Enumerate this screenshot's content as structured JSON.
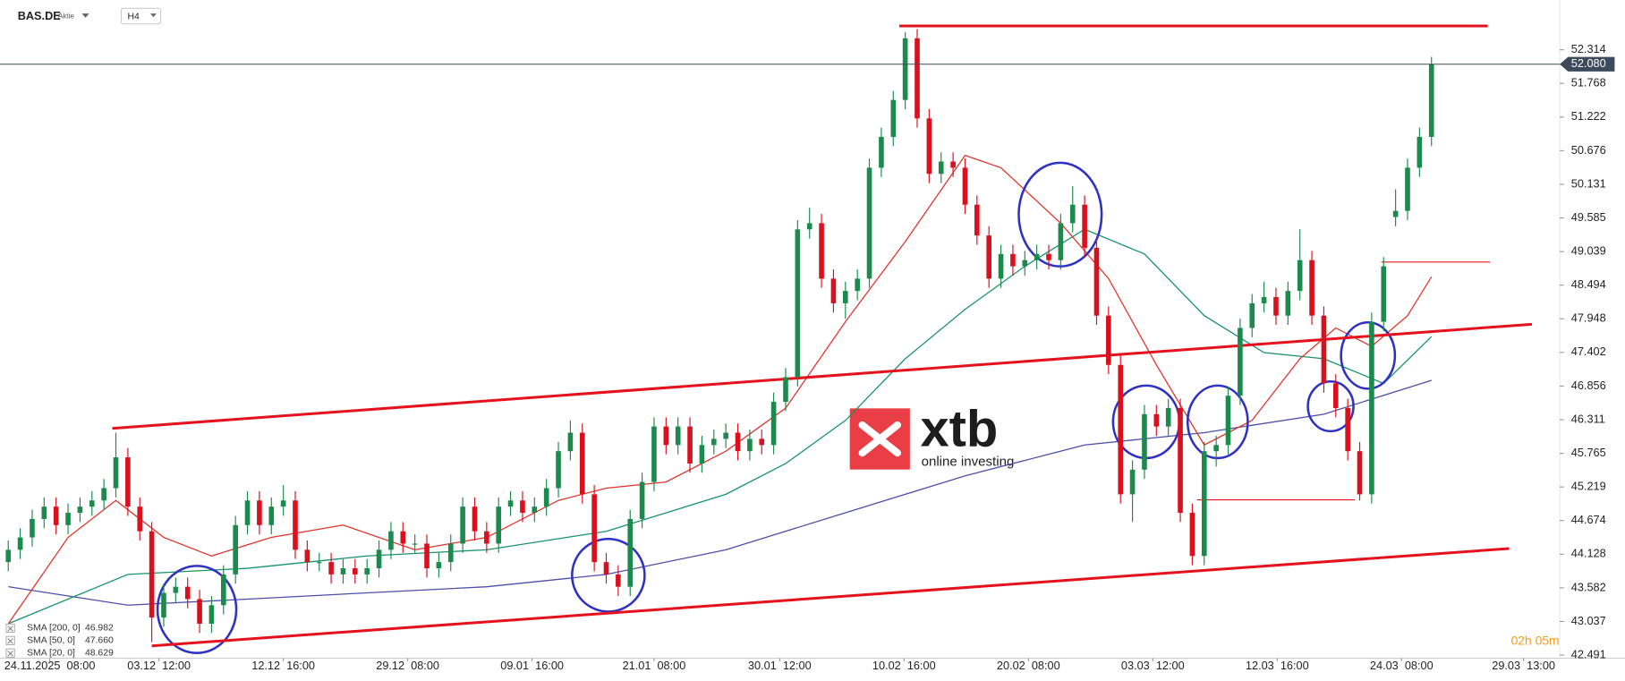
{
  "header": {
    "symbol": "BAS.DE",
    "kind": "Aktie",
    "timeframe": "H4"
  },
  "timer": "02h 05m",
  "logo": {
    "brand": "xtb",
    "tagline": "online investing"
  },
  "chart_data": {
    "type": "candlestick",
    "up_color": "#1b8a4c",
    "down_color": "#d9101e",
    "xlim": [
      -0.69,
      129.29
    ],
    "ylim": [
      42.441,
      53.121
    ],
    "xticks": [
      {
        "value": 3.47,
        "label": "24.11.2025  08:00"
      },
      {
        "value": 12.6,
        "label": "03.12  12:00"
      },
      {
        "value": 23.0,
        "label": "12.12  16:00"
      },
      {
        "value": 33.4,
        "label": "29.12  08:00"
      },
      {
        "value": 43.8,
        "label": "09.01  16:00"
      },
      {
        "value": 54.0,
        "label": "21.01  08:00"
      },
      {
        "value": 64.5,
        "label": "30.01  12:00"
      },
      {
        "value": 74.9,
        "label": "10.02  16:00"
      },
      {
        "value": 85.3,
        "label": "20.02  08:00"
      },
      {
        "value": 95.7,
        "label": "03.03  12:00"
      },
      {
        "value": 106.1,
        "label": "12.03  16:00"
      },
      {
        "value": 116.5,
        "label": "24.03  08:00"
      },
      {
        "value": 126.7,
        "label": "29.03  13:00"
      }
    ],
    "yticks": [
      52.314,
      51.768,
      51.222,
      50.676,
      50.131,
      49.585,
      49.039,
      48.494,
      47.948,
      47.402,
      46.856,
      46.311,
      45.765,
      45.219,
      44.674,
      44.128,
      43.582,
      43.037,
      42.491
    ],
    "last_price": {
      "value": 52.08,
      "label": "52.080"
    },
    "open": [
      44.0,
      44.2,
      44.4,
      44.7,
      44.9,
      44.6,
      44.8,
      44.9,
      45.0,
      45.2,
      45.7,
      44.9,
      44.5,
      43.1,
      43.5,
      43.6,
      43.4,
      43.0,
      43.3,
      43.8,
      44.6,
      45.0,
      44.6,
      44.9,
      45.0,
      44.2,
      44.0,
      44.0,
      43.8,
      43.9,
      43.8,
      43.9,
      44.2,
      44.5,
      44.3,
      44.3,
      43.9,
      44.0,
      44.3,
      44.9,
      44.5,
      44.3,
      44.9,
      45.0,
      44.8,
      44.9,
      45.2,
      45.8,
      46.1,
      45.1,
      44.0,
      43.8,
      43.6,
      44.7,
      45.3,
      46.2,
      45.9,
      46.2,
      45.6,
      45.9,
      46.0,
      46.1,
      45.8,
      46.0,
      45.9,
      46.6,
      47.0,
      49.4,
      49.5,
      48.6,
      48.2,
      48.4,
      48.6,
      50.4,
      50.9,
      51.5,
      52.5,
      51.2,
      50.3,
      50.5,
      50.4,
      49.8,
      49.3,
      48.6,
      49.0,
      48.8,
      48.9,
      49.0,
      48.9,
      49.5,
      49.8,
      49.1,
      48.0,
      47.2,
      45.1,
      45.5,
      46.4,
      46.2,
      46.5,
      44.8,
      44.1,
      45.8,
      45.9,
      46.7,
      47.8,
      48.2,
      48.3,
      48.0,
      48.4,
      48.9,
      48.0,
      46.9,
      46.5,
      45.8,
      45.1,
      47.9,
      49.6,
      49.7,
      50.4,
      50.9
    ],
    "high": [
      44.35,
      44.55,
      44.85,
      45.05,
      45.05,
      44.95,
      45.05,
      45.15,
      45.35,
      46.1,
      45.85,
      45.05,
      44.65,
      43.65,
      43.75,
      43.75,
      43.55,
      43.45,
      43.95,
      44.75,
      45.15,
      45.15,
      45.05,
      45.25,
      45.15,
      44.35,
      44.15,
      44.15,
      44.05,
      44.05,
      44.05,
      44.35,
      44.65,
      44.65,
      44.45,
      44.45,
      44.15,
      44.45,
      45.05,
      45.05,
      44.65,
      45.05,
      45.15,
      45.15,
      45.05,
      45.35,
      45.95,
      46.3,
      46.25,
      45.25,
      44.15,
      43.95,
      44.85,
      45.45,
      46.35,
      46.35,
      46.35,
      46.35,
      46.05,
      46.15,
      46.25,
      46.25,
      46.15,
      46.15,
      46.75,
      47.15,
      49.55,
      49.75,
      49.65,
      48.75,
      48.55,
      48.75,
      50.55,
      51.05,
      51.65,
      52.6,
      52.65,
      51.35,
      50.65,
      50.65,
      50.55,
      49.95,
      49.45,
      49.15,
      49.15,
      49.05,
      49.15,
      49.15,
      49.65,
      50.1,
      49.95,
      49.25,
      48.15,
      47.35,
      45.65,
      46.55,
      46.55,
      46.65,
      46.65,
      44.95,
      45.95,
      46.05,
      46.85,
      47.95,
      48.35,
      48.55,
      48.45,
      48.55,
      49.4,
      49.05,
      48.15,
      47.05,
      46.65,
      45.95,
      48.05,
      48.95,
      50.05,
      50.55,
      51.05,
      52.2
    ],
    "low": [
      43.85,
      44.05,
      44.25,
      44.55,
      44.45,
      44.45,
      44.65,
      44.75,
      44.85,
      45.05,
      44.75,
      44.35,
      42.7,
      42.95,
      43.35,
      43.25,
      42.85,
      42.85,
      43.15,
      43.65,
      44.45,
      44.45,
      44.45,
      44.75,
      44.05,
      43.85,
      43.85,
      43.65,
      43.65,
      43.65,
      43.65,
      43.75,
      44.05,
      44.15,
      44.15,
      43.75,
      43.75,
      43.85,
      44.15,
      44.35,
      44.15,
      44.15,
      44.75,
      44.65,
      44.65,
      44.75,
      45.05,
      45.65,
      44.95,
      43.85,
      43.65,
      43.45,
      43.45,
      44.55,
      45.15,
      45.75,
      45.75,
      45.45,
      45.45,
      45.75,
      45.85,
      45.65,
      45.65,
      45.75,
      45.75,
      46.45,
      46.85,
      49.25,
      48.45,
      48.05,
      47.95,
      48.25,
      48.45,
      50.25,
      50.75,
      51.35,
      51.05,
      50.15,
      50.15,
      50.25,
      49.65,
      49.15,
      48.45,
      48.45,
      48.65,
      48.65,
      48.75,
      48.75,
      48.75,
      49.35,
      48.95,
      47.85,
      47.05,
      44.95,
      44.65,
      45.35,
      46.05,
      46.05,
      44.65,
      43.95,
      43.95,
      45.55,
      45.75,
      46.55,
      47.65,
      48.05,
      47.85,
      47.85,
      48.25,
      47.85,
      46.75,
      46.35,
      45.65,
      45.0,
      44.95,
      47.75,
      49.45,
      49.55,
      50.25,
      50.75
    ],
    "close": [
      44.2,
      44.4,
      44.7,
      44.9,
      44.6,
      44.8,
      44.9,
      45.0,
      45.2,
      45.7,
      44.9,
      44.5,
      43.1,
      43.5,
      43.6,
      43.4,
      43.0,
      43.3,
      43.8,
      44.6,
      45.0,
      44.6,
      44.9,
      45.0,
      44.2,
      44.0,
      44.0,
      43.8,
      43.9,
      43.8,
      43.9,
      44.2,
      44.5,
      44.3,
      44.3,
      43.9,
      44.0,
      44.3,
      44.9,
      44.5,
      44.3,
      44.9,
      45.0,
      44.8,
      44.9,
      45.2,
      45.8,
      46.1,
      45.1,
      44.0,
      43.8,
      43.6,
      44.7,
      45.3,
      46.2,
      45.9,
      46.2,
      45.6,
      45.9,
      46.0,
      46.1,
      45.8,
      46.0,
      45.9,
      46.6,
      47.0,
      49.4,
      49.5,
      48.6,
      48.2,
      48.4,
      48.6,
      50.4,
      50.9,
      51.5,
      52.5,
      51.2,
      50.3,
      50.5,
      50.4,
      49.8,
      49.3,
      48.6,
      49.0,
      48.8,
      48.9,
      49.0,
      48.9,
      49.5,
      49.8,
      49.1,
      48.0,
      47.2,
      45.1,
      45.5,
      46.4,
      46.2,
      46.5,
      44.8,
      44.1,
      45.8,
      45.9,
      46.7,
      47.8,
      48.2,
      48.3,
      48.0,
      48.4,
      48.9,
      48.0,
      46.9,
      46.5,
      45.8,
      45.1,
      47.9,
      48.8,
      49.7,
      50.4,
      50.9,
      52.08
    ],
    "series": [
      {
        "name": "SMA [200, 0]",
        "last": 46.982,
        "color": "#4a4fa8",
        "x": [
          0,
          10,
          20,
          30,
          40,
          50,
          60,
          70,
          80,
          90,
          100,
          110,
          119
        ],
        "values": [
          43.6,
          43.3,
          43.4,
          43.5,
          43.6,
          43.8,
          44.2,
          44.8,
          45.4,
          45.9,
          46.1,
          46.4,
          46.95
        ]
      },
      {
        "name": "SMA [50, 0]",
        "last": {
          "value": 47.66,
          "label": "47.660"
        },
        "color": "#16936a",
        "x": [
          0,
          10,
          20,
          30,
          40,
          50,
          60,
          65,
          70,
          75,
          80,
          85,
          90,
          95,
          100,
          105,
          110,
          115,
          119
        ],
        "values": [
          43.0,
          43.8,
          43.9,
          44.1,
          44.2,
          44.5,
          45.1,
          45.6,
          46.3,
          47.3,
          48.1,
          48.8,
          49.4,
          49.0,
          48.0,
          47.4,
          47.3,
          46.9,
          47.66
        ]
      },
      {
        "name": "SMA [20, 0]",
        "last": 48.629,
        "color": "#e0332b",
        "x": [
          0,
          5,
          9,
          13,
          17,
          22,
          28,
          34,
          40,
          46,
          50,
          55,
          60,
          65,
          70,
          75,
          80,
          83,
          88,
          92,
          96,
          100,
          104,
          108,
          111,
          114,
          117,
          119
        ],
        "values": [
          43.0,
          44.4,
          45.0,
          44.4,
          44.1,
          44.4,
          44.6,
          44.2,
          44.4,
          45.0,
          45.2,
          45.3,
          45.8,
          46.5,
          47.9,
          49.2,
          50.6,
          50.4,
          49.5,
          48.6,
          47.2,
          45.9,
          46.3,
          47.3,
          47.8,
          47.5,
          48.0,
          48.63
        ]
      }
    ],
    "trendlines": [
      {
        "color": "#e3121d",
        "x": [
          74.5,
          123.7
        ],
        "y": [
          52.7,
          52.7
        ]
      },
      {
        "color": "#e3121d",
        "x": [
          8.7,
          127.4
        ],
        "y": [
          46.17,
          47.86
        ]
      },
      {
        "color": "#e3121d",
        "x": [
          12.0,
          125.5
        ],
        "y": [
          42.64,
          44.22
        ]
      },
      {
        "color": "#e3121d",
        "x": [
          114.8,
          123.9
        ],
        "y": [
          48.87,
          48.87
        ],
        "thin": true
      },
      {
        "color": "#e3121d",
        "x": [
          99.4,
          112.6
        ],
        "y": [
          45.01,
          45.01
        ],
        "thin": true
      }
    ]
  }
}
